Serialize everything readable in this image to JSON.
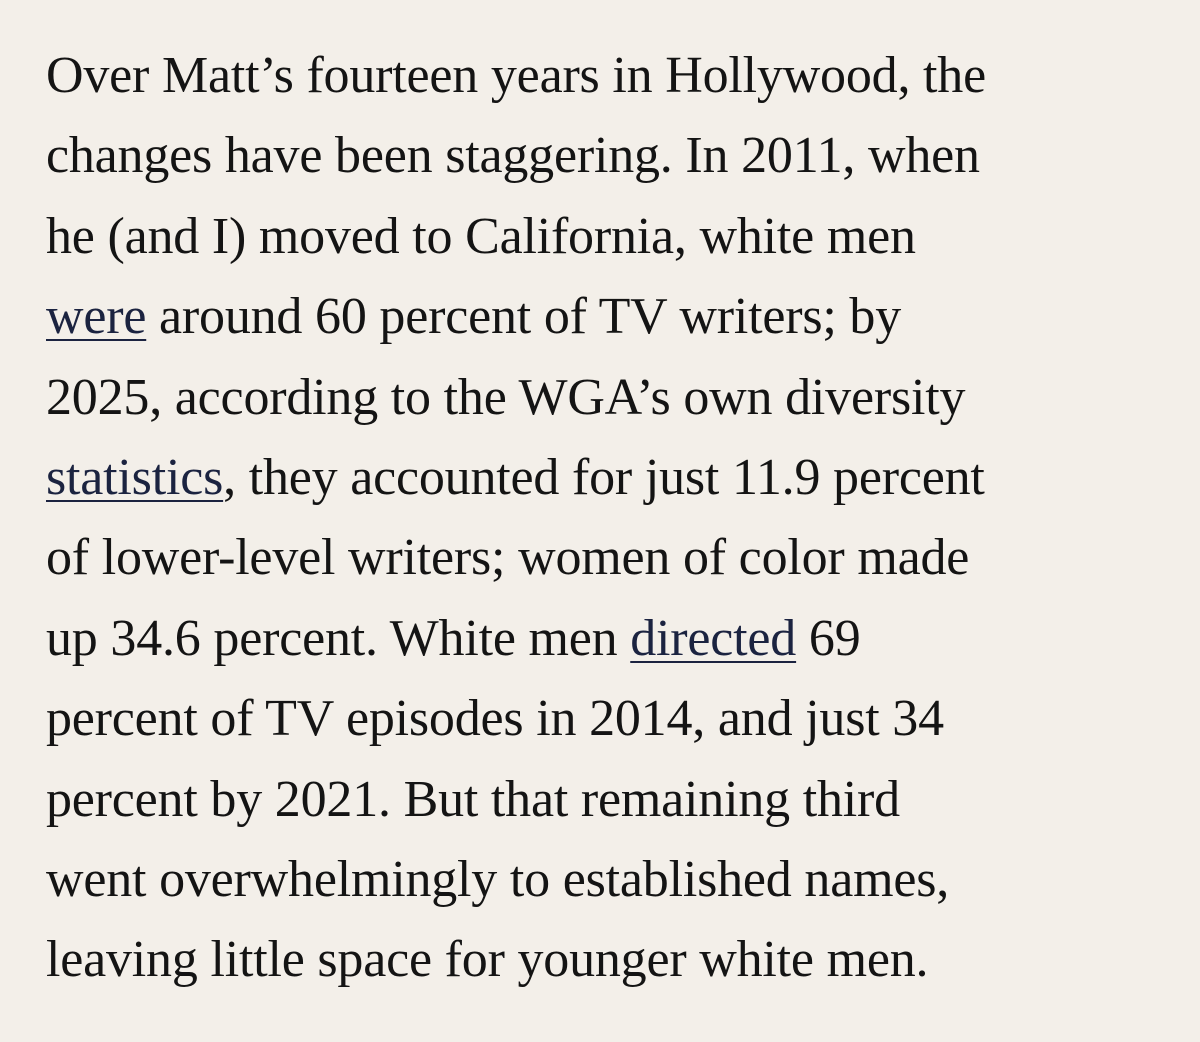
{
  "article": {
    "paragraph": {
      "lines": [
        {
          "text": "Over Matt’s fourteen years in Hollywood, the"
        },
        {
          "text": "changes have been staggering. In 2011, when"
        },
        {
          "text": "he (and I) moved to California, white men"
        },
        {
          "link": "were",
          "text": " around 60 percent of TV writers; by"
        },
        {
          "text": "2025, according to the WGA’s own diversity"
        },
        {
          "link": "statistics",
          "text": ", they accounted for just 11.9 percent"
        },
        {
          "text": "of lower-level writers; women of color made"
        },
        {
          "before": "up 34.6 percent. White men ",
          "link": "directed",
          "text": " 69"
        },
        {
          "text": "percent of TV episodes in 2014, and just 34"
        },
        {
          "text": "percent by 2021. But that remaining third"
        },
        {
          "text": "went overwhelmingly to established names,"
        },
        {
          "text": "leaving little space for younger white men."
        }
      ]
    }
  },
  "colors": {
    "background": "#f3efe9",
    "text": "#141414",
    "link": "#1b2340"
  }
}
